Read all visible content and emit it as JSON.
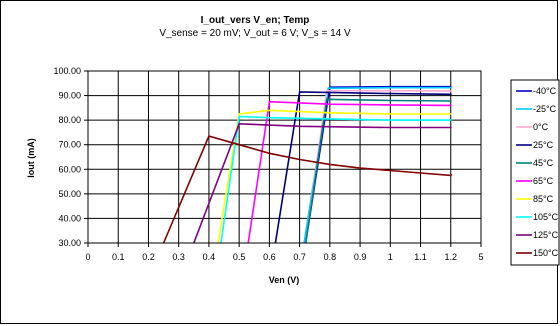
{
  "chart_data": {
    "type": "line",
    "title": "I_out_vers V_en; Temp",
    "subtitle": "V_sense = 20 mV; V_out = 6 V; V_s = 14 V",
    "xlabel": "Ven (V)",
    "ylabel": "Iout (mA)",
    "x_tick_labels": [
      "0",
      "0.1",
      "0.2",
      "0.3",
      "0.4",
      "0.5",
      "0.6",
      "0.7",
      "0.8",
      "0.9",
      "1",
      "1.1",
      "1.2",
      "5"
    ],
    "y_tick_labels": [
      "30.00",
      "40.00",
      "50.00",
      "60.00",
      "70.00",
      "80.00",
      "90.00",
      "100.00"
    ],
    "ylim": [
      30,
      100
    ],
    "grid": "x and y",
    "legend_position": "right",
    "series": [
      {
        "name": "-40°C",
        "color": "#0000cc",
        "x": [
          0.72,
          0.8,
          1.0,
          1.3
        ],
        "y": [
          30,
          93.4,
          93.6,
          93.6
        ]
      },
      {
        "name": "-25°C",
        "color": "#00ccff",
        "x": [
          0.715,
          0.795,
          1.0,
          1.3
        ],
        "y": [
          30,
          93.0,
          93.2,
          93.2
        ]
      },
      {
        "name": "0°C",
        "color": "#ffaad4",
        "x": [
          0.72,
          0.79,
          1.0,
          1.3
        ],
        "y": [
          30,
          92.0,
          92.0,
          91.8
        ]
      },
      {
        "name": "25°C",
        "color": "#000080",
        "x": [
          0.62,
          0.7,
          1.0,
          1.3
        ],
        "y": [
          30,
          91.5,
          90.8,
          90.5
        ]
      },
      {
        "name": "45°C",
        "color": "#008080",
        "x": [
          0.72,
          0.79,
          1.0,
          1.3
        ],
        "y": [
          30,
          88.5,
          88.0,
          87.8
        ]
      },
      {
        "name": "65°C",
        "color": "#ff00ff",
        "x": [
          0.53,
          0.6,
          0.8,
          1.0,
          1.3
        ],
        "y": [
          30,
          87.5,
          86.5,
          86.2,
          86.0
        ]
      },
      {
        "name": "85°C",
        "color": "#ffff00",
        "x": [
          0.43,
          0.5,
          0.6,
          0.8,
          1.0,
          1.3
        ],
        "y": [
          30,
          82.5,
          84.0,
          83.0,
          82.5,
          82.5
        ]
      },
      {
        "name": "105°C",
        "color": "#00ffff",
        "x": [
          0.44,
          0.5,
          0.6,
          0.8,
          1.0,
          1.3
        ],
        "y": [
          30,
          81.5,
          81.0,
          80.5,
          80.0,
          80.0
        ]
      },
      {
        "name": "125°C",
        "color": "#800080",
        "x": [
          0.35,
          0.5,
          0.7,
          1.0,
          1.3
        ],
        "y": [
          30,
          78.5,
          77.5,
          77.0,
          77.0
        ]
      },
      {
        "name": "150°C",
        "color": "#800000",
        "x": [
          0.25,
          0.4,
          0.5,
          0.6,
          0.7,
          0.8,
          0.9,
          1.0,
          1.1,
          1.2,
          1.3
        ],
        "y": [
          30,
          73.5,
          70.0,
          66.5,
          64.0,
          62.0,
          60.5,
          59.5,
          58.5,
          57.5,
          58.0
        ]
      }
    ]
  }
}
